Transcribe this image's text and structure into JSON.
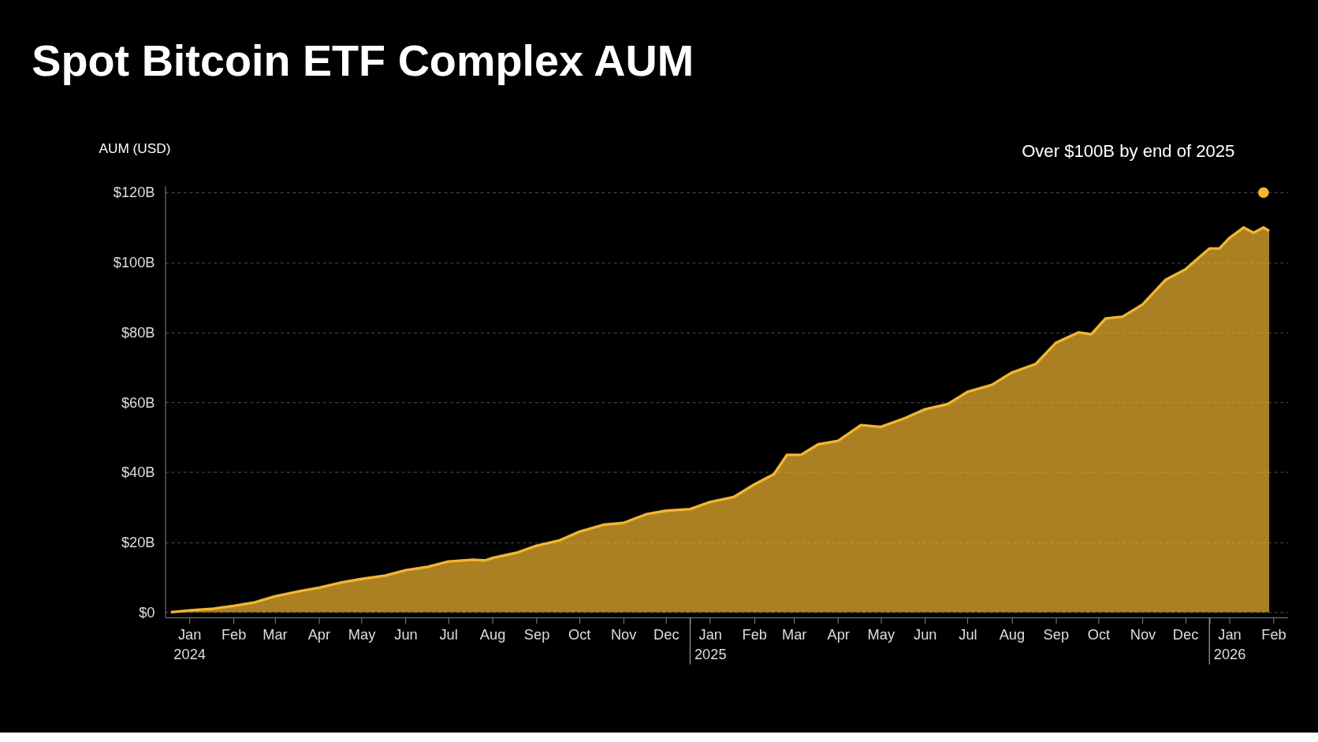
{
  "chart_data": {
    "type": "area",
    "title": "Spot Bitcoin ETF Complex AUM",
    "ylabel": "AUM (USD)",
    "x": [
      "2024-01-02",
      "2024-01-15",
      "2024-02-01",
      "2024-02-15",
      "2024-03-01",
      "2024-03-15",
      "2024-04-01",
      "2024-04-15",
      "2024-05-01",
      "2024-05-15",
      "2024-06-01",
      "2024-06-15",
      "2024-07-01",
      "2024-07-15",
      "2024-08-01",
      "2024-08-10",
      "2024-08-15",
      "2024-09-01",
      "2024-09-15",
      "2024-10-01",
      "2024-10-15",
      "2024-11-01",
      "2024-11-15",
      "2024-12-01",
      "2024-12-15",
      "2025-01-01",
      "2025-01-15",
      "2025-02-01",
      "2025-02-15",
      "2025-03-01",
      "2025-03-10",
      "2025-03-20",
      "2025-04-01",
      "2025-04-15",
      "2025-05-01",
      "2025-05-15",
      "2025-06-01",
      "2025-06-15",
      "2025-07-01",
      "2025-07-15",
      "2025-08-01",
      "2025-08-15",
      "2025-09-01",
      "2025-09-15",
      "2025-10-01",
      "2025-10-10",
      "2025-10-20",
      "2025-11-01",
      "2025-11-15",
      "2025-12-01",
      "2025-12-15",
      "2026-01-01",
      "2026-01-08",
      "2026-01-15",
      "2026-01-25",
      "2026-02-01",
      "2026-02-08",
      "2026-02-12"
    ],
    "series": [
      {
        "color": "#f2b630",
        "values": [
          0,
          0.5,
          1,
          1.8,
          2.8,
          4.5,
          6,
          7,
          8.5,
          9.5,
          10.5,
          12,
          13,
          14.5,
          15,
          14.8,
          15.5,
          17,
          19,
          20.5,
          23,
          25,
          25.5,
          28,
          29,
          29.5,
          31.5,
          33,
          36.5,
          39.5,
          45,
          45,
          48,
          49,
          53.5,
          53,
          55.5,
          58,
          59.5,
          63,
          65,
          68.5,
          71,
          77,
          80,
          79.5,
          84,
          84.5,
          88,
          95,
          98,
          104,
          104,
          107,
          110,
          108.5,
          110,
          109
        ]
      }
    ],
    "xlim": [
      "2023-12-29",
      "2026-02-25"
    ],
    "xticks": [
      {
        "value": "2024-01-15",
        "label": "Jan\n2024"
      },
      {
        "value": "2024-02-15",
        "label": "Feb"
      },
      {
        "value": "2024-03-15",
        "label": "Mar"
      },
      {
        "value": "2024-04-15",
        "label": "Apr"
      },
      {
        "value": "2024-05-15",
        "label": "May"
      },
      {
        "value": "2024-06-15",
        "label": "Jun"
      },
      {
        "value": "2024-07-15",
        "label": "Jul"
      },
      {
        "value": "2024-08-15",
        "label": "Aug"
      },
      {
        "value": "2024-09-15",
        "label": "Sep"
      },
      {
        "value": "2024-10-15",
        "label": "Oct"
      },
      {
        "value": "2024-11-15",
        "label": "Nov"
      },
      {
        "value": "2024-12-15",
        "label": "Dec"
      },
      {
        "value": "2025-01-15",
        "label": "Jan\n2025"
      },
      {
        "value": "2025-02-15",
        "label": "Feb"
      },
      {
        "value": "2025-03-15",
        "label": "Mar"
      },
      {
        "value": "2025-04-15",
        "label": "Apr"
      },
      {
        "value": "2025-05-15",
        "label": "May"
      },
      {
        "value": "2025-06-15",
        "label": "Jun"
      },
      {
        "value": "2025-07-15",
        "label": "Jul"
      },
      {
        "value": "2025-08-15",
        "label": "Aug"
      },
      {
        "value": "2025-09-15",
        "label": "Sep"
      },
      {
        "value": "2025-10-15",
        "label": "Oct"
      },
      {
        "value": "2025-11-15",
        "label": "Nov"
      },
      {
        "value": "2025-12-15",
        "label": "Dec"
      },
      {
        "value": "2026-01-15",
        "label": "Jan\n2026"
      },
      {
        "value": "2026-02-15",
        "label": "Feb"
      },
      {
        "value": "2025-01-01",
        "label": null
      },
      {
        "value": "2026-01-01",
        "label": null
      }
    ],
    "ylim": [
      -1.5,
      122
    ],
    "yticks": [
      {
        "value": 0,
        "label": "$0"
      },
      {
        "value": 20,
        "label": "$20B"
      },
      {
        "value": 40,
        "label": "$40B"
      },
      {
        "value": 60,
        "label": "$60B"
      },
      {
        "value": 80,
        "label": "$80B"
      },
      {
        "value": 100,
        "label": "$100B"
      },
      {
        "value": 120,
        "label": "$120B"
      }
    ],
    "grid": "y",
    "annotations": [
      {
        "text": "Over $100B by end of 2025",
        "x": "2026-02-08",
        "y": 120
      }
    ]
  }
}
